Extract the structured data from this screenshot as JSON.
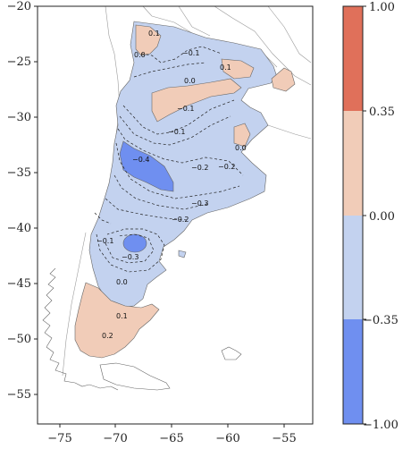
{
  "map": {
    "x_ticks": [
      "−75",
      "−70",
      "−65",
      "−60",
      "−55"
    ],
    "y_ticks": [
      "−20",
      "−25",
      "−30",
      "−35",
      "−40",
      "−45",
      "−50",
      "−55"
    ],
    "contour_labels": [
      "0.1",
      "0.0",
      "−0.1",
      "0.1",
      "0.0",
      "−0.1",
      "−0.1",
      "−0.4",
      "−0.2",
      "−0.2",
      "0.0",
      "−0.3",
      "−0.2",
      "−0.1",
      "−0.3",
      "0.0",
      "0.1",
      "0.2"
    ]
  },
  "colorbar": {
    "tick_labels": [
      "1.00",
      "0.35",
      "0.00",
      "−0.35",
      "−1.00"
    ],
    "colors": [
      "#e0705a",
      "#f1ccb8",
      "#c3d2ef",
      "#6f8ff0"
    ]
  },
  "colors": {
    "positive": "#f1ccb8",
    "negative_weak": "#c3d2ef",
    "negative_strong": "#6f8ff0",
    "border": "#888888"
  }
}
